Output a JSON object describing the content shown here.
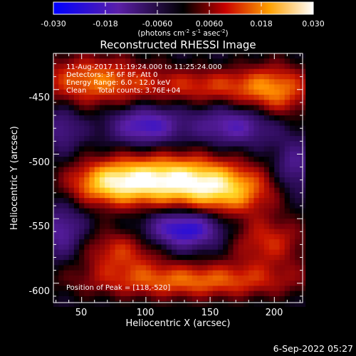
{
  "chart_data": {
    "type": "heatmap",
    "title": "Reconstructed RHESSI Image",
    "xlabel": "Heliocentric X (arcsec)",
    "ylabel": "Heliocentric Y (arcsec)",
    "xlim": [
      28,
      222
    ],
    "ylim": [
      -615,
      -422
    ],
    "xticks": [
      50,
      100,
      150,
      200
    ],
    "yticks": [
      -450,
      -500,
      -550,
      -600
    ],
    "colorbar": {
      "min": -0.03,
      "max": 0.03,
      "ticks": [
        "-0.030",
        "-0.018",
        "-0.0060",
        "0.0060",
        "0.018",
        "0.030"
      ],
      "unit_parts": {
        "prefix": "(photons cm",
        "exp1": "-2",
        "mid1": " s",
        "exp2": "-1",
        "mid2": " asec",
        "exp3": "-2",
        "suffix": ")"
      }
    },
    "annotations": [
      "11-Aug-2017 11:19:24.000 to 11:25:24.000",
      "Detectors: 3F 6F 8F, Att 0",
      "Energy Range: 6.0 - 12.0 keV",
      "Clean     Total counts: 3.76E+04"
    ],
    "peak_label": "Position of Peak = [118,-520]",
    "peak": [
      118,
      -520
    ],
    "sources": [
      {
        "x": 118,
        "y": -520,
        "sx": 38,
        "sy": 14,
        "amp": 1.0
      },
      {
        "x": 70,
        "y": -523,
        "sx": 22,
        "sy": 12,
        "amp": 0.55
      },
      {
        "x": 165,
        "y": -530,
        "sx": 25,
        "sy": 13,
        "amp": 0.55
      },
      {
        "x": 58,
        "y": -443,
        "sx": 32,
        "sy": 14,
        "amp": 0.6
      },
      {
        "x": 150,
        "y": -447,
        "sx": 40,
        "sy": 10,
        "amp": 0.45
      },
      {
        "x": 202,
        "y": -452,
        "sx": 20,
        "sy": 16,
        "amp": 0.5
      },
      {
        "x": 80,
        "y": -575,
        "sx": 22,
        "sy": 12,
        "amp": 0.45
      },
      {
        "x": 195,
        "y": -568,
        "sx": 22,
        "sy": 14,
        "amp": 0.45
      },
      {
        "x": 135,
        "y": -598,
        "sx": 60,
        "sy": 10,
        "amp": 0.6
      },
      {
        "x": 100,
        "y": -478,
        "sx": 18,
        "sy": 10,
        "amp": -0.6
      },
      {
        "x": 170,
        "y": -478,
        "sx": 22,
        "sy": 10,
        "amp": -0.5
      },
      {
        "x": 130,
        "y": -558,
        "sx": 20,
        "sy": 10,
        "amp": -0.75
      },
      {
        "x": 35,
        "y": -560,
        "sx": 12,
        "sy": 14,
        "amp": -0.4
      },
      {
        "x": 215,
        "y": -510,
        "sx": 10,
        "sy": 14,
        "amp": -0.35
      },
      {
        "x": 35,
        "y": -480,
        "sx": 10,
        "sy": 12,
        "amp": -0.3
      }
    ]
  },
  "footer": {
    "timestamp": "6-Sep-2022 05:27"
  }
}
